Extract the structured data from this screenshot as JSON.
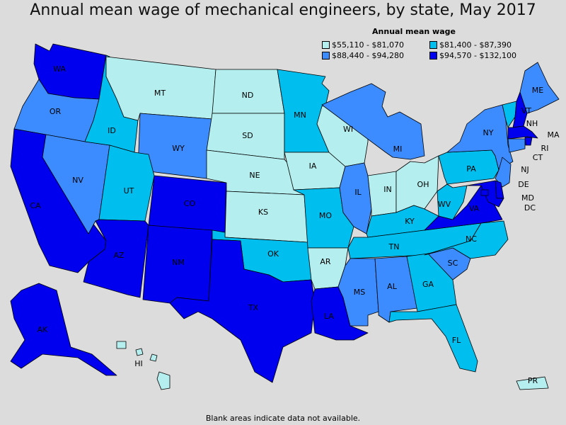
{
  "title": "Annual mean wage of mechanical engineers, by state, May 2017",
  "legend": {
    "title": "Annual mean wage",
    "items": [
      {
        "label": "$55,110 - $81,070",
        "color": "#b4eeee"
      },
      {
        "label": "$81,400 - $87,390",
        "color": "#00bfef"
      },
      {
        "label": "$88,440 - $94,280",
        "color": "#3c8cff"
      },
      {
        "label": "$94,570 - $132,100",
        "color": "#0000ee"
      }
    ]
  },
  "colors": {
    "q1": "#b4eeee",
    "q2": "#00bfef",
    "q3": "#3c8cff",
    "q4": "#0000ee"
  },
  "states": [
    {
      "abbr": "WA",
      "bin": "q4"
    },
    {
      "abbr": "OR",
      "bin": "q3"
    },
    {
      "abbr": "CA",
      "bin": "q4"
    },
    {
      "abbr": "NV",
      "bin": "q3"
    },
    {
      "abbr": "ID",
      "bin": "q2"
    },
    {
      "abbr": "MT",
      "bin": "q1"
    },
    {
      "abbr": "WY",
      "bin": "q3"
    },
    {
      "abbr": "UT",
      "bin": "q2"
    },
    {
      "abbr": "AZ",
      "bin": "q4"
    },
    {
      "abbr": "CO",
      "bin": "q4"
    },
    {
      "abbr": "NM",
      "bin": "q4"
    },
    {
      "abbr": "ND",
      "bin": "q1"
    },
    {
      "abbr": "SD",
      "bin": "q1"
    },
    {
      "abbr": "NE",
      "bin": "q1"
    },
    {
      "abbr": "KS",
      "bin": "q1"
    },
    {
      "abbr": "OK",
      "bin": "q2"
    },
    {
      "abbr": "TX",
      "bin": "q4"
    },
    {
      "abbr": "MN",
      "bin": "q2"
    },
    {
      "abbr": "IA",
      "bin": "q1"
    },
    {
      "abbr": "MO",
      "bin": "q2"
    },
    {
      "abbr": "AR",
      "bin": "q1"
    },
    {
      "abbr": "LA",
      "bin": "q4"
    },
    {
      "abbr": "WI",
      "bin": "q1"
    },
    {
      "abbr": "IL",
      "bin": "q3"
    },
    {
      "abbr": "MI",
      "bin": "q3"
    },
    {
      "abbr": "IN",
      "bin": "q1"
    },
    {
      "abbr": "OH",
      "bin": "q1"
    },
    {
      "abbr": "KY",
      "bin": "q2"
    },
    {
      "abbr": "TN",
      "bin": "q2"
    },
    {
      "abbr": "MS",
      "bin": "q3"
    },
    {
      "abbr": "AL",
      "bin": "q3"
    },
    {
      "abbr": "GA",
      "bin": "q2"
    },
    {
      "abbr": "FL",
      "bin": "q2"
    },
    {
      "abbr": "SC",
      "bin": "q3"
    },
    {
      "abbr": "NC",
      "bin": "q2"
    },
    {
      "abbr": "VA",
      "bin": "q4"
    },
    {
      "abbr": "WV",
      "bin": "q2"
    },
    {
      "abbr": "PA",
      "bin": "q2"
    },
    {
      "abbr": "NY",
      "bin": "q3"
    },
    {
      "abbr": "VT",
      "bin": "q2"
    },
    {
      "abbr": "NH",
      "bin": "q4"
    },
    {
      "abbr": "ME",
      "bin": "q3"
    },
    {
      "abbr": "MA",
      "bin": "q4"
    },
    {
      "abbr": "RI",
      "bin": "q4"
    },
    {
      "abbr": "CT",
      "bin": "q3"
    },
    {
      "abbr": "NJ",
      "bin": "q3"
    },
    {
      "abbr": "DE",
      "bin": "q4"
    },
    {
      "abbr": "MD",
      "bin": "q4"
    },
    {
      "abbr": "DC",
      "bin": "q4"
    },
    {
      "abbr": "AK",
      "bin": "q4"
    },
    {
      "abbr": "HI",
      "bin": "q1"
    },
    {
      "abbr": "PR",
      "bin": "q1"
    }
  ],
  "footnote": "Blank areas indicate data not available."
}
